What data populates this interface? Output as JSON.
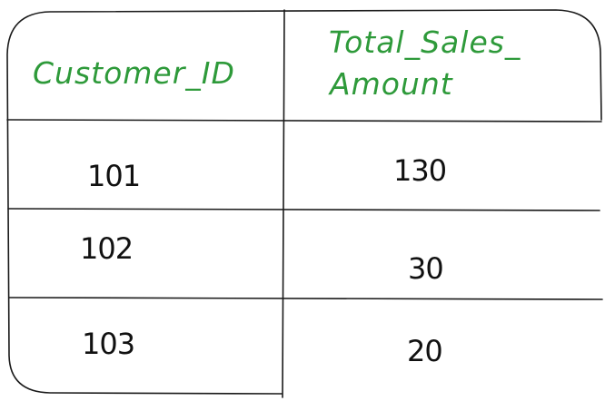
{
  "table": {
    "headers": [
      "Customer_ID",
      "Total_Sales_Amount"
    ],
    "header_display": {
      "customer_id": "Customer_ID",
      "total_sales_line1": "Total_Sales_",
      "total_sales_line2": "Amount"
    },
    "rows": [
      {
        "customer_id": "101",
        "total_sales_amount": "130"
      },
      {
        "customer_id": "102",
        "total_sales_amount": "30"
      },
      {
        "customer_id": "103",
        "total_sales_amount": "20"
      }
    ]
  },
  "colors": {
    "header_text": "#2e9a3a",
    "value_text": "#111111",
    "lines": "#1a1a1a"
  }
}
